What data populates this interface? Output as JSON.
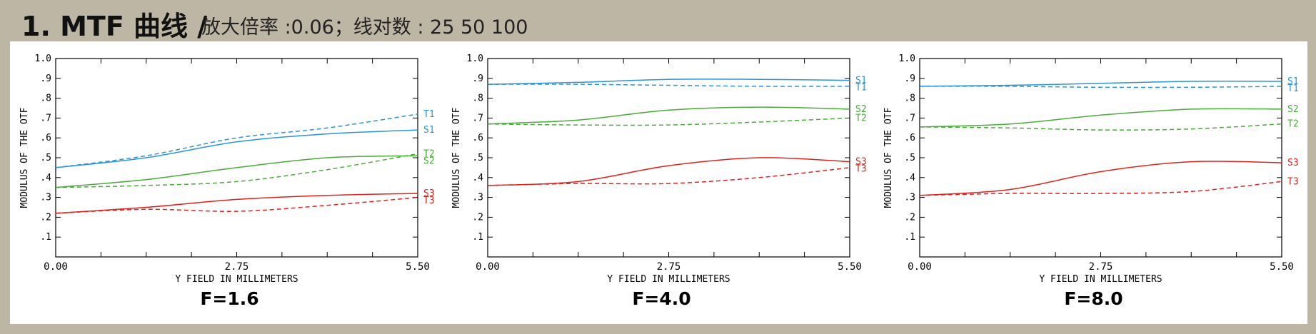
{
  "header": {
    "title": "1. MTF 曲线 /",
    "subtitle": "放大倍率 :0.06；线对数 : 25 50 100"
  },
  "colors": {
    "pair1": "#2a94d8",
    "pair2": "#4aaa3a",
    "pair3": "#e0211d",
    "background": "#bdb6a5"
  },
  "chart_data": [
    {
      "type": "line",
      "title": "F=1.6",
      "xlabel": "Y FIELD IN MILLIMETERS",
      "ylabel": "MODULUS OF THE OTF",
      "xlim": [
        0,
        5.5
      ],
      "ylim": [
        0,
        1.0
      ],
      "x_ticks": [
        "0.00",
        "2.75",
        "5.50"
      ],
      "y_ticks": [
        ".1",
        ".2",
        ".3",
        ".4",
        ".5",
        ".6",
        ".7",
        ".8",
        ".9",
        "1.0"
      ],
      "x": [
        0,
        1.375,
        2.75,
        4.125,
        5.5
      ],
      "series": [
        {
          "name": "S1",
          "values": [
            0.45,
            0.5,
            0.58,
            0.62,
            0.64
          ],
          "style": "solid",
          "color": "#2a94d8"
        },
        {
          "name": "T1",
          "values": [
            0.45,
            0.51,
            0.6,
            0.65,
            0.72
          ],
          "style": "dashed",
          "color": "#2a94d8"
        },
        {
          "name": "S2",
          "values": [
            0.35,
            0.39,
            0.45,
            0.5,
            0.51
          ],
          "style": "solid",
          "color": "#4aaa3a"
        },
        {
          "name": "T2",
          "values": [
            0.35,
            0.36,
            0.38,
            0.44,
            0.52
          ],
          "style": "dashed",
          "color": "#4aaa3a"
        },
        {
          "name": "S3",
          "values": [
            0.22,
            0.25,
            0.29,
            0.31,
            0.32
          ],
          "style": "solid",
          "color": "#e0211d"
        },
        {
          "name": "T3",
          "values": [
            0.22,
            0.24,
            0.23,
            0.26,
            0.3
          ],
          "style": "dashed",
          "color": "#e0211d"
        }
      ]
    },
    {
      "type": "line",
      "title": "F=4.0",
      "xlabel": "Y FIELD IN MILLIMETERS",
      "ylabel": "MODULUS OF THE OTF",
      "xlim": [
        0,
        5.5
      ],
      "ylim": [
        0,
        1.0
      ],
      "x_ticks": [
        "0.00",
        "2.75",
        "5.50"
      ],
      "y_ticks": [
        ".1",
        ".2",
        ".3",
        ".4",
        ".5",
        ".6",
        ".7",
        ".8",
        ".9",
        "1.0"
      ],
      "x": [
        0,
        1.375,
        2.75,
        4.125,
        5.5
      ],
      "series": [
        {
          "name": "S1",
          "values": [
            0.87,
            0.88,
            0.895,
            0.895,
            0.89
          ],
          "style": "solid",
          "color": "#2a94d8"
        },
        {
          "name": "T1",
          "values": [
            0.87,
            0.87,
            0.865,
            0.86,
            0.86
          ],
          "style": "dashed",
          "color": "#2a94d8"
        },
        {
          "name": "S2",
          "values": [
            0.67,
            0.69,
            0.74,
            0.755,
            0.745
          ],
          "style": "solid",
          "color": "#4aaa3a"
        },
        {
          "name": "T2",
          "values": [
            0.67,
            0.665,
            0.665,
            0.68,
            0.7
          ],
          "style": "dashed",
          "color": "#4aaa3a"
        },
        {
          "name": "S3",
          "values": [
            0.36,
            0.38,
            0.46,
            0.5,
            0.48
          ],
          "style": "solid",
          "color": "#e0211d"
        },
        {
          "name": "T3",
          "values": [
            0.36,
            0.37,
            0.37,
            0.4,
            0.45
          ],
          "style": "dashed",
          "color": "#e0211d"
        }
      ]
    },
    {
      "type": "line",
      "title": "F=8.0",
      "xlabel": "Y FIELD IN MILLIMETERS",
      "ylabel": "MODULUS OF THE OTF",
      "xlim": [
        0,
        5.5
      ],
      "ylim": [
        0,
        1.0
      ],
      "x_ticks": [
        "0.00",
        "2.75",
        "5.50"
      ],
      "y_ticks": [
        ".1",
        ".2",
        ".3",
        ".4",
        ".5",
        ".6",
        ".7",
        ".8",
        ".9",
        "1.0"
      ],
      "x": [
        0,
        1.375,
        2.75,
        4.125,
        5.5
      ],
      "series": [
        {
          "name": "S1",
          "values": [
            0.86,
            0.865,
            0.875,
            0.885,
            0.885
          ],
          "style": "solid",
          "color": "#2a94d8"
        },
        {
          "name": "T1",
          "values": [
            0.86,
            0.86,
            0.855,
            0.855,
            0.86
          ],
          "style": "dashed",
          "color": "#2a94d8"
        },
        {
          "name": "S2",
          "values": [
            0.655,
            0.67,
            0.715,
            0.745,
            0.745
          ],
          "style": "solid",
          "color": "#4aaa3a"
        },
        {
          "name": "T2",
          "values": [
            0.655,
            0.65,
            0.64,
            0.645,
            0.67
          ],
          "style": "dashed",
          "color": "#4aaa3a"
        },
        {
          "name": "S3",
          "values": [
            0.31,
            0.34,
            0.43,
            0.48,
            0.475
          ],
          "style": "solid",
          "color": "#e0211d"
        },
        {
          "name": "T3",
          "values": [
            0.31,
            0.32,
            0.32,
            0.33,
            0.38
          ],
          "style": "dashed",
          "color": "#e0211d"
        }
      ]
    }
  ]
}
